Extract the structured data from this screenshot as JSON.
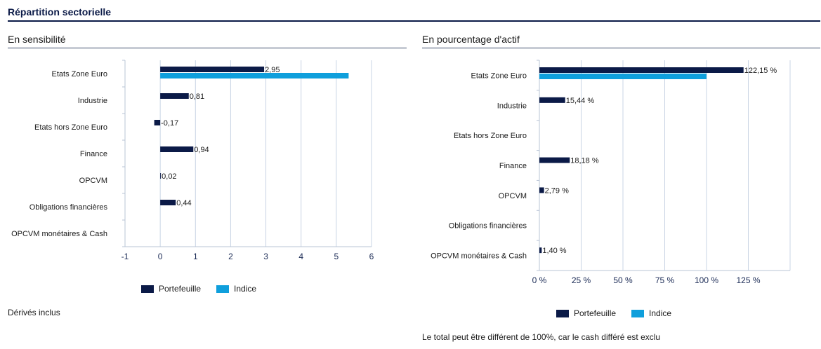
{
  "page": {
    "title": "Répartition sectorielle",
    "left_title": "En sensibilité",
    "right_title": "En pourcentage d'actif",
    "left_note": "Dérivés inclus",
    "right_note": "Le total peut être différent de 100%, car le cash différé est exclu"
  },
  "colors": {
    "portefeuille": "#0b1a47",
    "indice": "#0f9fdc"
  },
  "chart_data": [
    {
      "type": "bar",
      "orientation": "horizontal",
      "title": "En sensibilité",
      "categories": [
        "Etats Zone Euro",
        "Industrie",
        "Etats hors Zone Euro",
        "Finance",
        "OPCVM",
        "Obligations financières",
        "OPCVM monétaires & Cash"
      ],
      "series": [
        {
          "name": "Portefeuille",
          "values": [
            2.95,
            0.81,
            -0.17,
            0.94,
            0.02,
            0.44,
            null
          ],
          "labels": [
            "2,95",
            "0,81",
            "-0,17",
            "0,94",
            "0,02",
            "0,44",
            ""
          ]
        },
        {
          "name": "Indice",
          "values": [
            5.35,
            null,
            null,
            null,
            null,
            null,
            null
          ],
          "labels": [
            "",
            "",
            "",
            "",
            "",
            "",
            ""
          ]
        }
      ],
      "xlim": [
        -1,
        6
      ],
      "ticks": [
        -1,
        0,
        1,
        2,
        3,
        4,
        5,
        6
      ],
      "tick_labels": [
        "-1",
        "0",
        "1",
        "2",
        "3",
        "4",
        "5",
        "6"
      ],
      "grid": true,
      "legend": "bottom"
    },
    {
      "type": "bar",
      "orientation": "horizontal",
      "title": "En pourcentage d'actif",
      "categories": [
        "Etats Zone Euro",
        "Industrie",
        "Etats hors Zone Euro",
        "Finance",
        "OPCVM",
        "Obligations financières",
        "OPCVM monétaires & Cash"
      ],
      "series": [
        {
          "name": "Portefeuille",
          "values": [
            122.15,
            15.44,
            null,
            18.18,
            2.79,
            null,
            1.4
          ],
          "labels": [
            "122,15 %",
            "15,44 %",
            "",
            "18,18 %",
            "2,79 %",
            "",
            "1,40 %"
          ]
        },
        {
          "name": "Indice",
          "values": [
            100,
            null,
            null,
            null,
            null,
            null,
            null
          ],
          "labels": [
            "",
            "",
            "",
            "",
            "",
            "",
            ""
          ]
        }
      ],
      "xlim": [
        0,
        150
      ],
      "ticks": [
        0,
        25,
        50,
        75,
        100,
        125
      ],
      "tick_labels": [
        "0 %",
        "25 %",
        "50 %",
        "75 %",
        "100 %",
        "125 %"
      ],
      "grid": true,
      "legend": "bottom"
    }
  ]
}
